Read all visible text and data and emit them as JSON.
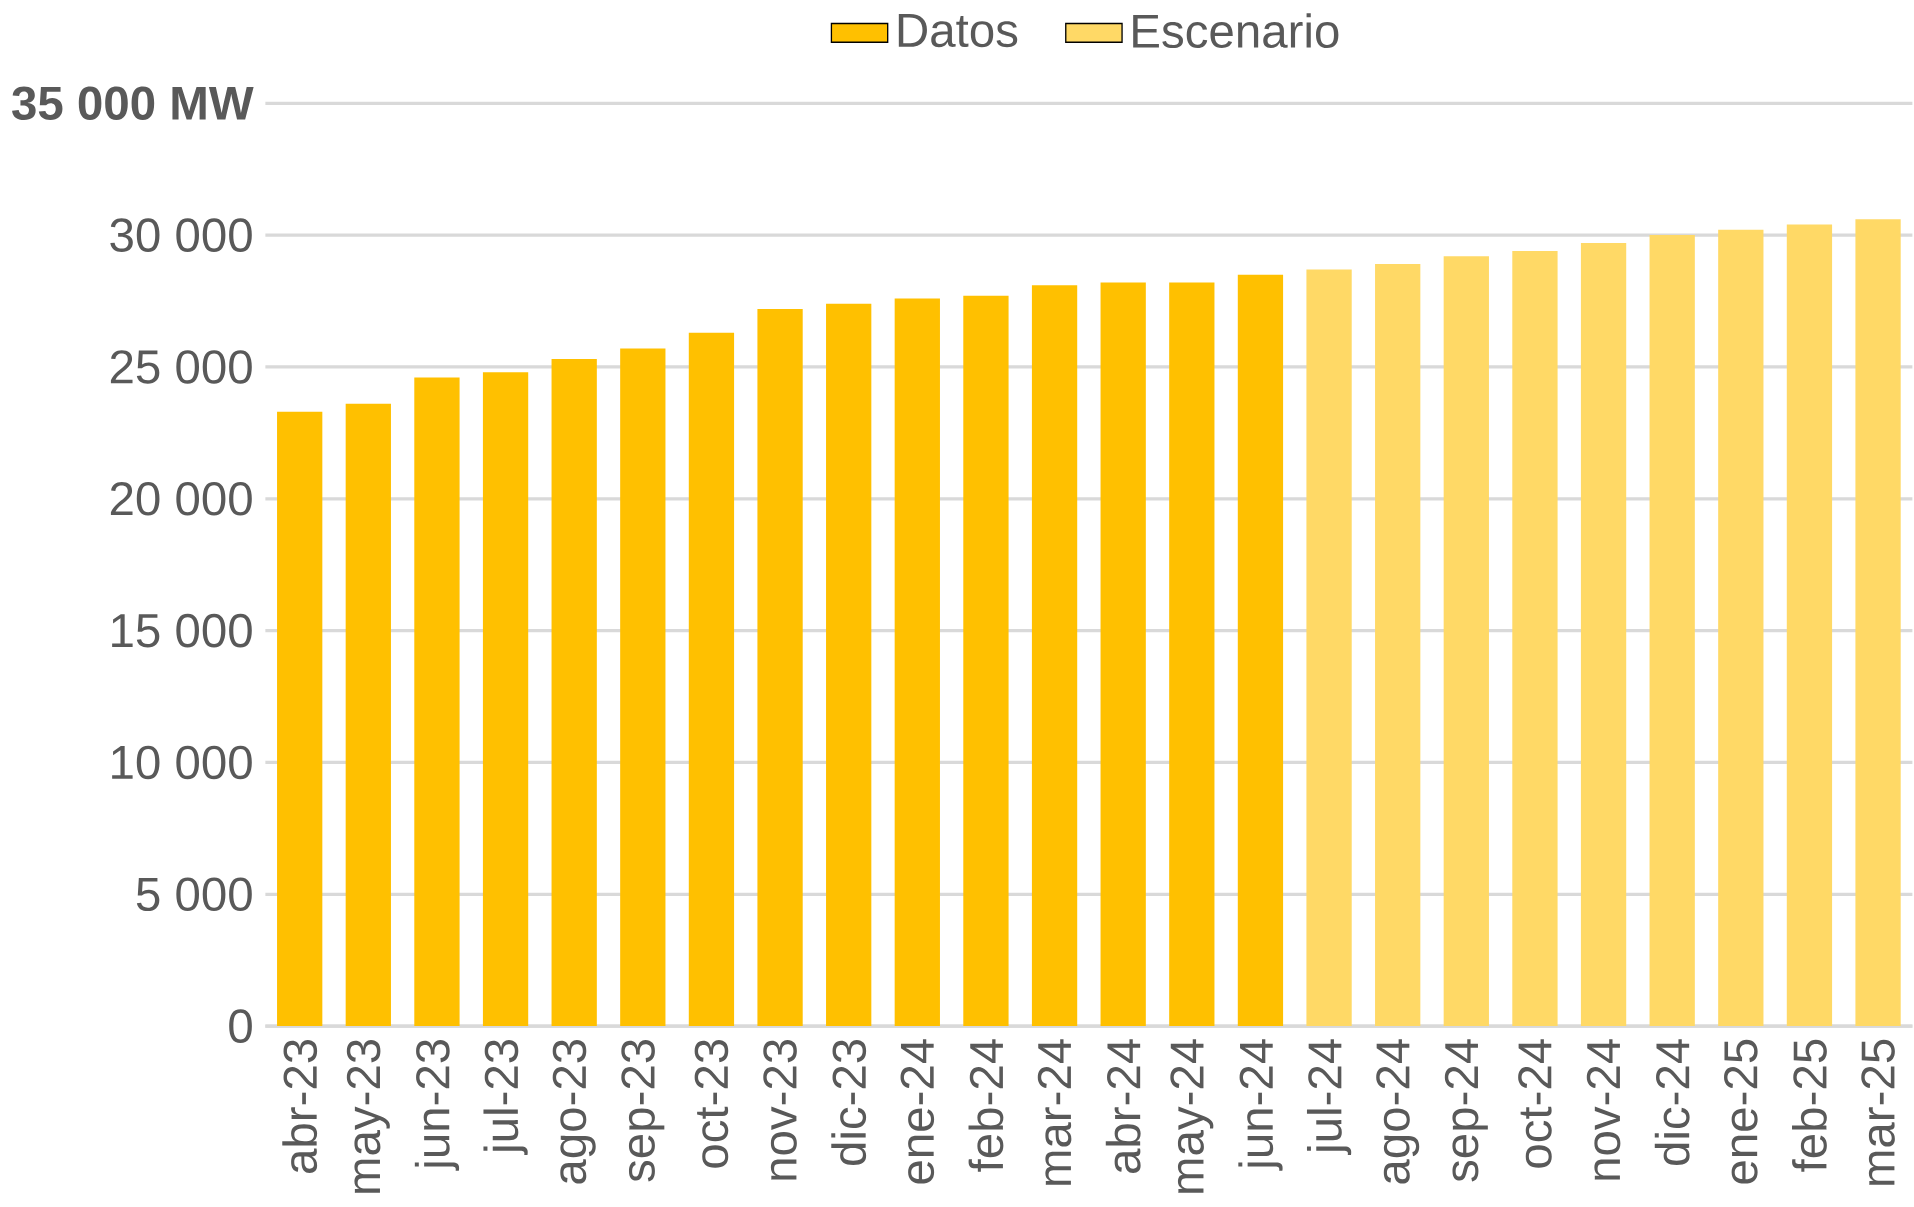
{
  "chart_data": {
    "type": "bar",
    "categories": [
      "abr-23",
      "may-23",
      "jun-23",
      "jul-23",
      "ago-23",
      "sep-23",
      "oct-23",
      "nov-23",
      "dic-23",
      "ene-24",
      "feb-24",
      "mar-24",
      "abr-24",
      "may-24",
      "jun-24",
      "jul-24",
      "ago-24",
      "sep-24",
      "oct-24",
      "nov-24",
      "dic-24",
      "ene-25",
      "feb-25",
      "mar-25"
    ],
    "series": [
      {
        "name": "Datos",
        "color": "#ffc000",
        "values": [
          23300,
          23600,
          24600,
          24800,
          25300,
          25700,
          26300,
          27200,
          27400,
          27600,
          27700,
          28100,
          28200,
          28200,
          28500,
          null,
          null,
          null,
          null,
          null,
          null,
          null,
          null,
          null
        ]
      },
      {
        "name": "Escenario",
        "color": "#ffd966",
        "values": [
          null,
          null,
          null,
          null,
          null,
          null,
          null,
          null,
          null,
          null,
          null,
          null,
          null,
          null,
          null,
          28700,
          28900,
          29200,
          29400,
          29700,
          30000,
          30200,
          30400,
          30600
        ]
      }
    ],
    "ylim": [
      0,
      35000
    ],
    "yticks": [
      {
        "value": 0,
        "label": "0"
      },
      {
        "value": 5000,
        "label": "5 000"
      },
      {
        "value": 10000,
        "label": "10 000"
      },
      {
        "value": 15000,
        "label": "15 000"
      },
      {
        "value": 20000,
        "label": "20 000"
      },
      {
        "value": 25000,
        "label": "25 000"
      },
      {
        "value": 30000,
        "label": "30 000"
      },
      {
        "value": 35000,
        "label": "35 000 MW"
      }
    ],
    "grid": "y",
    "legend": "top"
  }
}
